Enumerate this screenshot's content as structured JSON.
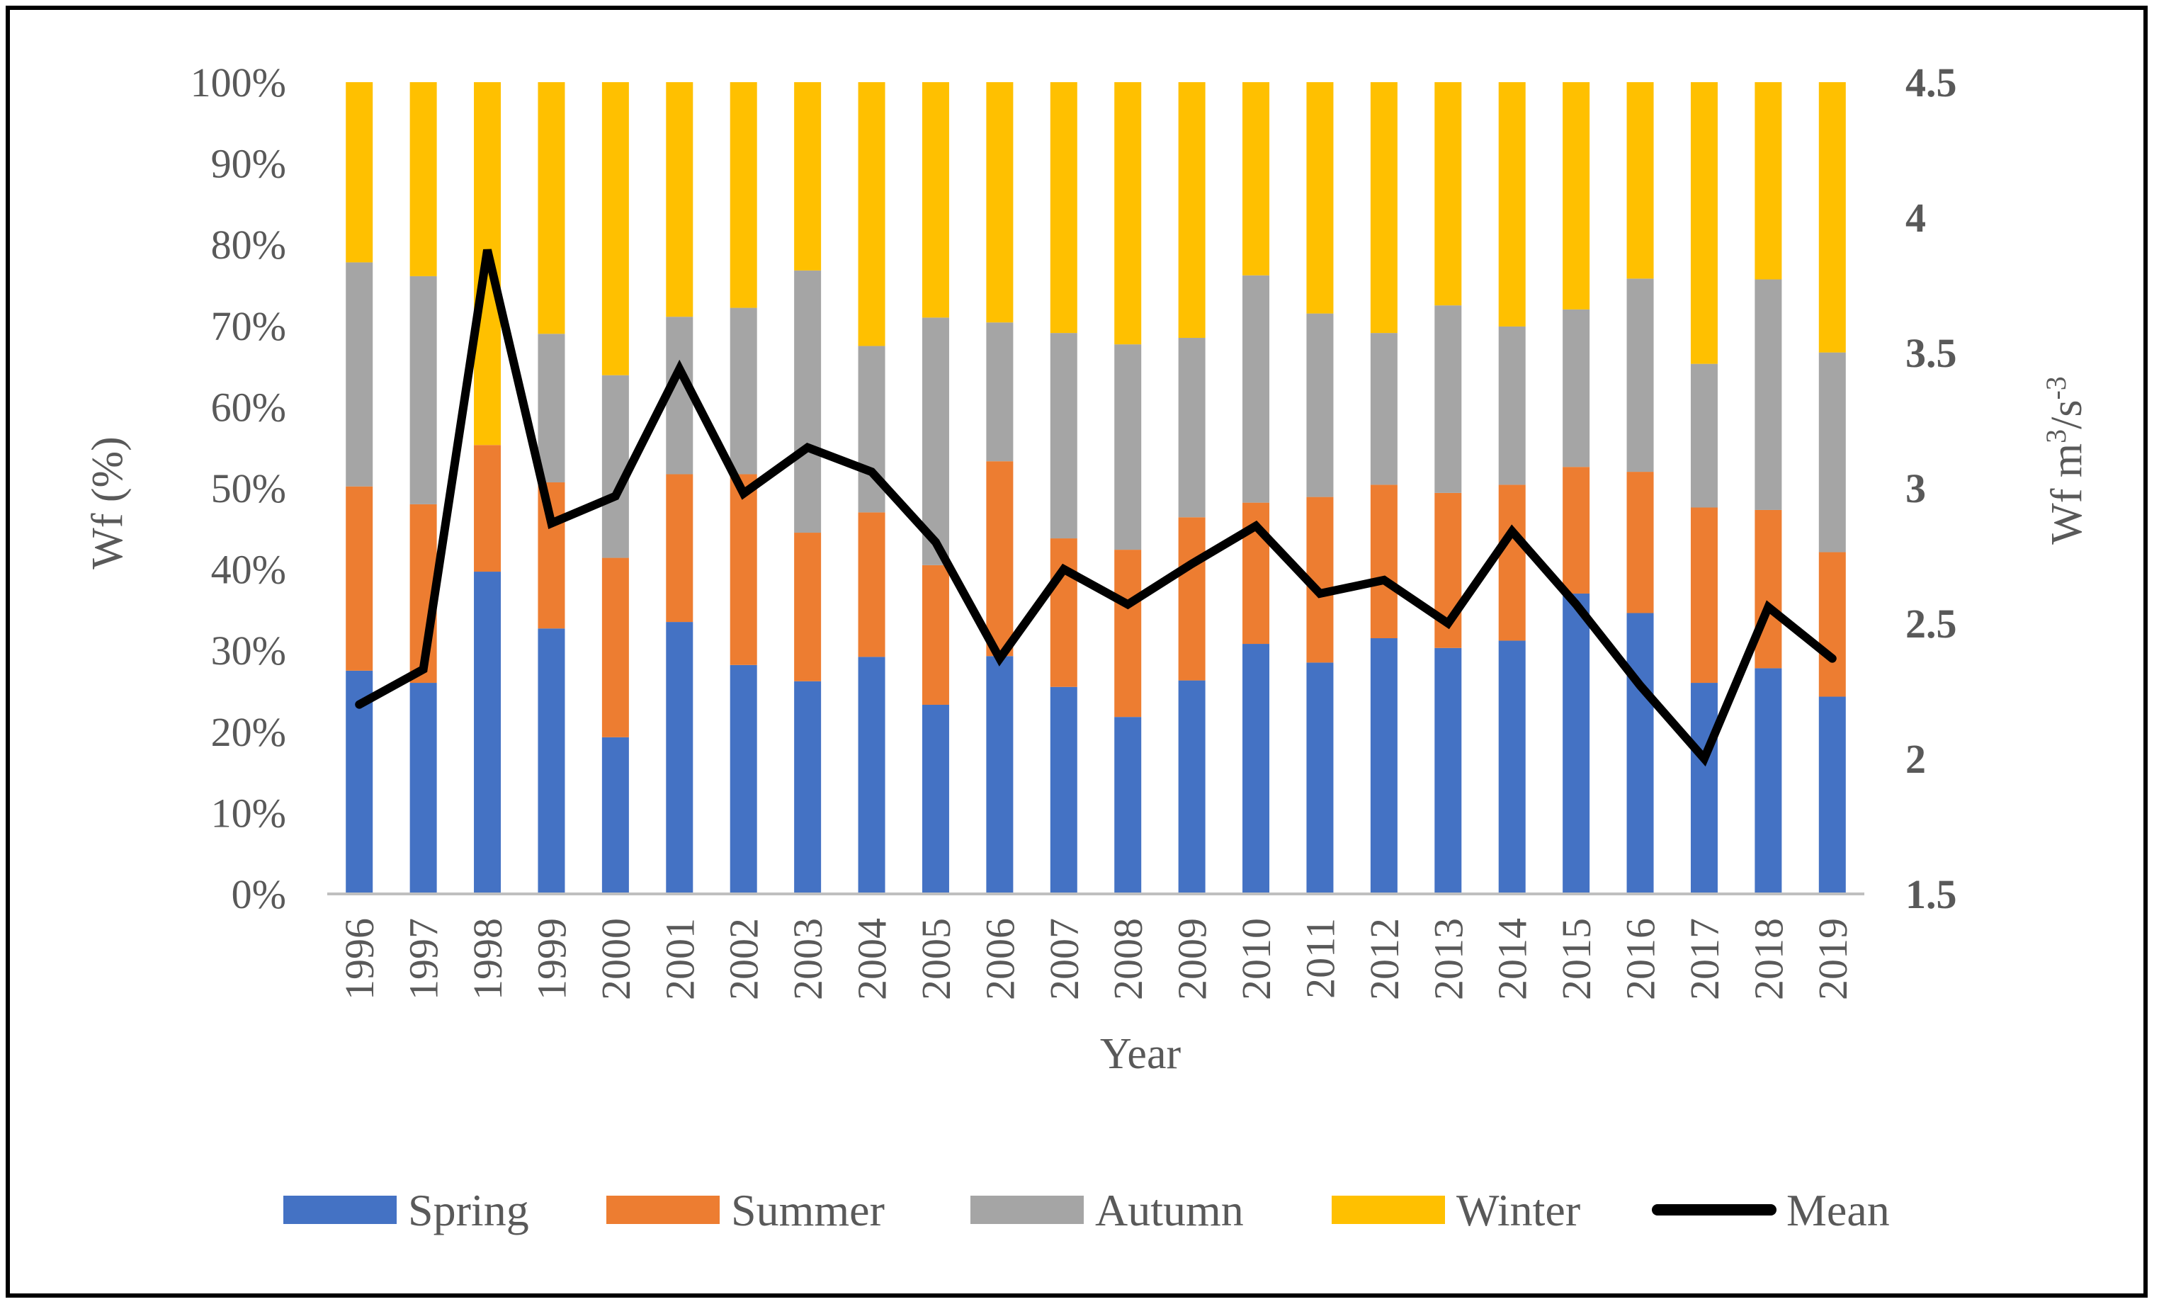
{
  "chart_data": {
    "type": "bar",
    "stacked": "percent",
    "categories": [
      "1996",
      "1997",
      "1998",
      "1999",
      "2000",
      "2001",
      "2002",
      "2003",
      "2004",
      "2005",
      "2006",
      "2007",
      "2008",
      "2009",
      "2010",
      "2011",
      "2012",
      "2013",
      "2014",
      "2015",
      "2016",
      "2017",
      "2018",
      "2019"
    ],
    "series": [
      {
        "name": "Spring",
        "color": "#4472C4",
        "values": [
          27.5,
          26,
          39.7,
          32.7,
          19.3,
          33.5,
          28.2,
          26.2,
          29.2,
          23.3,
          29.3,
          25.5,
          21.8,
          26.3,
          30.8,
          28.5,
          31.5,
          30.3,
          31.2,
          37,
          34.6,
          26,
          27.8,
          24.3
        ]
      },
      {
        "name": "Summer",
        "color": "#ED7D31",
        "values": [
          22.7,
          22,
          15.6,
          18,
          22.1,
          18.2,
          23.5,
          18.3,
          17.8,
          17.2,
          24,
          18.3,
          20.6,
          20.1,
          17.4,
          20.4,
          18.9,
          19.1,
          19.2,
          15.6,
          17.4,
          21.6,
          19.5,
          17.8
        ]
      },
      {
        "name": "Autumn",
        "color": "#A5A5A5",
        "values": [
          27.6,
          28.1,
          0,
          18.3,
          22.5,
          19.4,
          20.5,
          32.3,
          20.5,
          30.5,
          17.1,
          25.3,
          25.3,
          22.1,
          28,
          22.6,
          18.7,
          23.1,
          19.5,
          19.4,
          23.8,
          17.7,
          28.4,
          24.6
        ]
      },
      {
        "name": "Winter",
        "color": "#FFC000",
        "values": [
          22.2,
          23.9,
          44.7,
          31,
          36.1,
          28.9,
          27.8,
          23.2,
          32.5,
          29,
          29.6,
          30.9,
          32.3,
          31.5,
          23.8,
          28.5,
          30.9,
          27.5,
          30.1,
          28,
          24.2,
          34.7,
          24.3,
          33.3
        ]
      },
      {
        "name": "Mean",
        "color": "#000000",
        "type": "line",
        "axis": "right",
        "values": [
          2.2,
          2.33,
          3.88,
          2.87,
          2.97,
          3.44,
          2.98,
          3.15,
          3.06,
          2.8,
          2.37,
          2.7,
          2.57,
          2.72,
          2.86,
          2.61,
          2.66,
          2.5,
          2.84,
          2.57,
          2.27,
          2,
          2.56,
          2.37
        ]
      }
    ],
    "ylabel": "Wf (%)",
    "ylabel_right_main": "Wf  m",
    "ylabel_right_exp1": "3",
    "ylabel_right_mid": "/s",
    "ylabel_right_exp2": "-3",
    "xlabel": "Year",
    "ylim": [
      0,
      100
    ],
    "yticks": [
      "0%",
      "10%",
      "20%",
      "30%",
      "40%",
      "50%",
      "60%",
      "70%",
      "80%",
      "90%",
      "100%"
    ],
    "ylim_right": [
      1.5,
      4.5
    ],
    "yticks_right": [
      "1.5",
      "2",
      "2.5",
      "3",
      "3.5",
      "4",
      "4.5"
    ],
    "legend_position": "bottom"
  }
}
